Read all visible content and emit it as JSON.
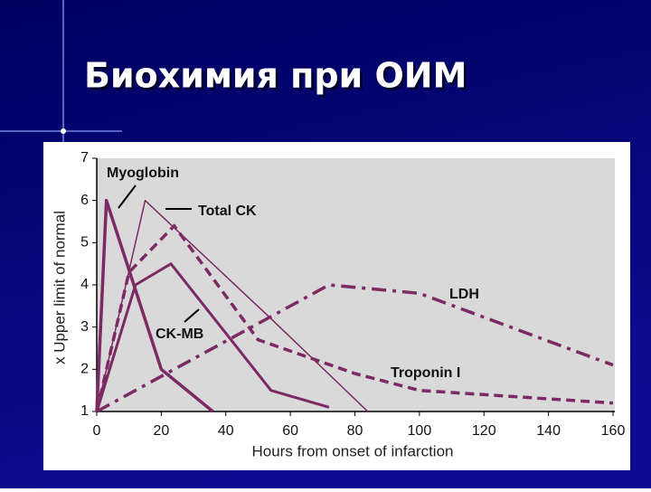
{
  "chart_data": {
    "type": "line",
    "title": "Биохимия при ОИМ",
    "xlabel": "Hours from onset of infarction",
    "ylabel": "x Upper limit of normal",
    "xlim": [
      0,
      160
    ],
    "xticks": [
      0,
      20,
      40,
      60,
      80,
      100,
      120,
      140,
      160
    ],
    "ylim": [
      1,
      7
    ],
    "yticks": [
      1,
      2,
      3,
      4,
      5,
      6,
      7
    ],
    "grid": false,
    "series": [
      {
        "name": "Myoglobin",
        "color": "#7b2a63",
        "line_style": "solid",
        "width": 3.5,
        "x": [
          0,
          3,
          20,
          36
        ],
        "values": [
          1,
          6,
          2,
          1
        ]
      },
      {
        "name": "Total CK",
        "color": "#7b2a63",
        "line_style": "solid",
        "width": 1.5,
        "x": [
          0,
          15,
          54,
          84
        ],
        "values": [
          1,
          6,
          3.2,
          1
        ]
      },
      {
        "name": "CK-MB",
        "color": "#7b2a63",
        "line_style": "solid",
        "width": 3,
        "x": [
          0,
          12,
          23,
          54,
          72
        ],
        "values": [
          1,
          4,
          4.5,
          1.5,
          1.1
        ]
      },
      {
        "name": "Troponin I",
        "color": "#7b2a63",
        "line_style": "dashed",
        "width": 3.5,
        "x": [
          0,
          10,
          24,
          50,
          80,
          100,
          160
        ],
        "values": [
          1,
          4.3,
          5.4,
          2.7,
          1.9,
          1.5,
          1.2
        ]
      },
      {
        "name": "LDH",
        "color": "#7b2a63",
        "line_style": "dashdot",
        "width": 3.5,
        "x": [
          0,
          24,
          72,
          100,
          160
        ],
        "values": [
          1,
          2,
          4,
          3.8,
          2.1
        ]
      }
    ]
  }
}
